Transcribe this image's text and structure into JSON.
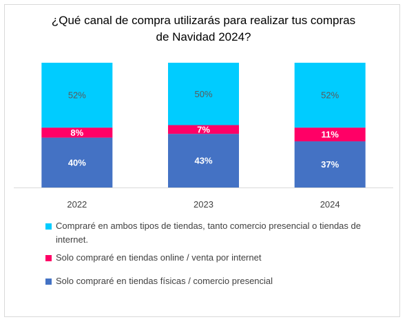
{
  "chart_data": {
    "type": "bar",
    "stacked": true,
    "title_line1": "¿Qué canal de compra utilizarás para realizar tus compras",
    "title_line2": "de Navidad 2024?",
    "categories": [
      "2022",
      "2023",
      "2024"
    ],
    "series": [
      {
        "name": "Solo compraré en tiendas físicas / comercio presencial",
        "color": "#4472c4",
        "values": [
          40,
          43,
          37
        ],
        "labels": [
          "40%",
          "43%",
          "37%"
        ]
      },
      {
        "name": "Solo compraré en tiendas online / venta por internet",
        "color": "#ff0066",
        "values": [
          8,
          7,
          11
        ],
        "labels": [
          "8%",
          "7%",
          "11%"
        ]
      },
      {
        "name": "Compraré en ambos tipos de tiendas, tanto comercio presencial o tiendas de internet.",
        "color": "#00ccff",
        "values": [
          52,
          50,
          52
        ],
        "labels": [
          "52%",
          "50%",
          "52%"
        ]
      }
    ],
    "legend": [
      {
        "label": "Compraré en ambos tipos de tiendas, tanto comercio presencial o tiendas de internet.",
        "color": "#00ccff"
      },
      {
        "label": "Solo compraré en tiendas online / venta por internet",
        "color": "#ff0066"
      },
      {
        "label": "Solo compraré en tiendas físicas / comercio presencial",
        "color": "#4472c4"
      }
    ],
    "ylim": [
      0,
      100
    ],
    "grid": false,
    "legend_position": "bottom"
  }
}
